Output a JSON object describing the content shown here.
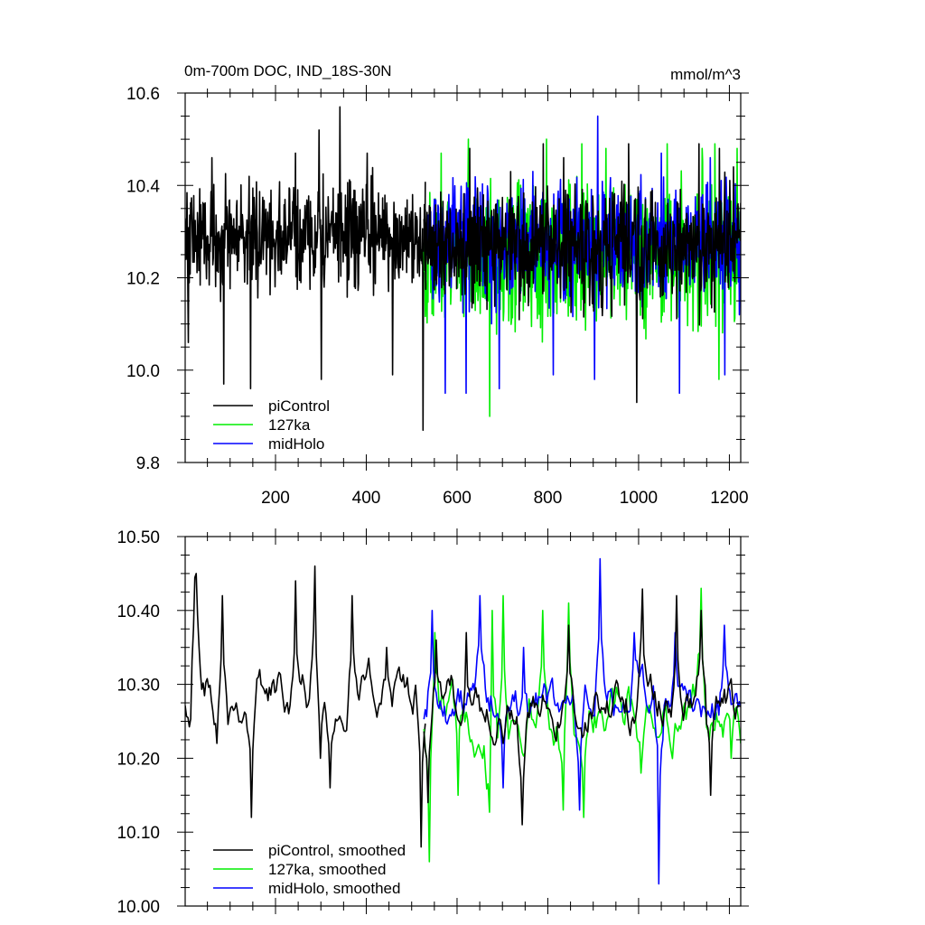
{
  "chart_data": [
    {
      "type": "line",
      "title": "0m-700m DOC, IND_18S-30N",
      "units": "mmol/m^3",
      "xlim": [
        1,
        1225
      ],
      "ylim": [
        9.8,
        10.6
      ],
      "xticks": [
        200,
        400,
        600,
        800,
        1000,
        1200
      ],
      "yticks": [
        9.8,
        10.0,
        10.2,
        10.4,
        10.6
      ],
      "ytick_labels": [
        "9.8",
        "10.0",
        "10.2",
        "10.4",
        "10.6"
      ],
      "grid": false,
      "legend_position": "bottom-left",
      "series": [
        {
          "name": "piControl",
          "color": "#000000",
          "x_start": 1,
          "x_end": 530,
          "points": 530,
          "mean": 10.29,
          "amp": 0.1,
          "extrema": [
            [
              8,
              10.06
            ],
            [
              60,
              10.46
            ],
            [
              86,
              9.97
            ],
            [
              145,
              9.96
            ],
            [
              244,
              10.47
            ],
            [
              296,
              10.52
            ],
            [
              301,
              9.98
            ],
            [
              342,
              10.57
            ],
            [
              402,
              10.47
            ],
            [
              458,
              9.99
            ],
            [
              525,
              9.87
            ]
          ]
        },
        {
          "name": "127ka",
          "color": "#00ee00",
          "x_start": 527,
          "x_end": 1225,
          "points": 699,
          "mean": 10.25,
          "amp": 0.13,
          "extrema": [
            [
              565,
              10.47
            ],
            [
              625,
              10.5
            ],
            [
              672,
              9.9
            ],
            [
              797,
              10.5
            ],
            [
              875,
              10.49
            ],
            [
              928,
              10.48
            ],
            [
              1063,
              10.49
            ],
            [
              1140,
              10.48
            ],
            [
              1168,
              10.49
            ],
            [
              1177,
              9.98
            ],
            [
              1217,
              10.48
            ]
          ]
        },
        {
          "name": "midHolo",
          "color": "#0000ff",
          "x_start": 533,
          "x_end": 1225,
          "points": 693,
          "mean": 10.28,
          "amp": 0.11,
          "extrema": [
            [
              574,
              9.95
            ],
            [
              620,
              9.95
            ],
            [
              693,
              9.96
            ],
            [
              812,
              9.99
            ],
            [
              910,
              10.55
            ],
            [
              903,
              9.98
            ],
            [
              1050,
              10.47
            ],
            [
              1090,
              9.95
            ],
            [
              1158,
              10.46
            ],
            [
              1190,
              9.99
            ],
            [
              1222,
              10.12
            ]
          ]
        },
        {
          "name": "piControl",
          "color": "#000000",
          "x_start": 527,
          "x_end": 1225,
          "points": 699,
          "mean": 10.27,
          "amp": 0.11,
          "overlay": true,
          "extrema": [
            [
              628,
              10.48
            ],
            [
              718,
              10.43
            ],
            [
              790,
              10.49
            ],
            [
              835,
              10.46
            ],
            [
              978,
              10.49
            ],
            [
              996,
              9.93
            ],
            [
              1133,
              10.49
            ],
            [
              1178,
              10.48
            ],
            [
              1209,
              10.44
            ]
          ]
        }
      ]
    },
    {
      "type": "line",
      "title": "",
      "xlim": [
        1,
        1225
      ],
      "ylim": [
        10.0,
        10.5
      ],
      "xticks": [
        200,
        400,
        600,
        800,
        1000,
        1200
      ],
      "yticks": [
        10.0,
        10.1,
        10.2,
        10.3,
        10.4,
        10.5
      ],
      "ytick_labels": [
        "10.00",
        "10.10",
        "10.20",
        "10.30",
        "10.40",
        "10.50"
      ],
      "grid": false,
      "legend_position": "bottom-left",
      "series": [
        {
          "name": "piControl, smoothed",
          "color": "#000000",
          "x_start": 1,
          "x_end": 530,
          "points": 175,
          "mean": 10.29,
          "amp": 0.07,
          "extrema": [
            [
              8,
              10.27
            ],
            [
              12,
              10.22
            ],
            [
              22,
              10.44
            ],
            [
              26,
              10.45
            ],
            [
              70,
              10.22
            ],
            [
              84,
              10.42
            ],
            [
              146,
              10.12
            ],
            [
              244,
              10.44
            ],
            [
              286,
              10.46
            ],
            [
              300,
              10.2
            ],
            [
              320,
              10.16
            ],
            [
              368,
              10.42
            ],
            [
              445,
              10.35
            ],
            [
              520,
              10.08
            ]
          ]
        },
        {
          "name": "127ka, smoothed",
          "color": "#00ee00",
          "x_start": 527,
          "x_end": 1225,
          "points": 233,
          "mean": 10.26,
          "amp": 0.08,
          "extrema": [
            [
              540,
              10.06
            ],
            [
              550,
              10.37
            ],
            [
              603,
              10.15
            ],
            [
              670,
              10.01
            ],
            [
              676,
              10.4
            ],
            [
              703,
              10.42
            ],
            [
              790,
              10.4
            ],
            [
              835,
              10.13
            ],
            [
              846,
              10.41
            ],
            [
              878,
              10.12
            ],
            [
              1005,
              10.18
            ],
            [
              1138,
              10.43
            ],
            [
              1204,
              10.2
            ],
            [
              1225,
              10.22
            ]
          ]
        },
        {
          "name": "midHolo, smoothed",
          "color": "#0000ff",
          "x_start": 527,
          "x_end": 1225,
          "points": 233,
          "mean": 10.27,
          "amp": 0.07,
          "extrema": [
            [
              545,
              10.4
            ],
            [
              572,
              10.27
            ],
            [
              650,
              10.42
            ],
            [
              700,
              10.16
            ],
            [
              748,
              10.35
            ],
            [
              870,
              10.13
            ],
            [
              914,
              10.47
            ],
            [
              990,
              10.37
            ],
            [
              1040,
              10.37
            ],
            [
              1045,
              10.03
            ],
            [
              1080,
              10.37
            ],
            [
              1190,
              10.38
            ],
            [
              1225,
              10.27
            ]
          ]
        },
        {
          "name": "piControl, smoothed",
          "color": "#000000",
          "x_start": 527,
          "x_end": 1225,
          "points": 233,
          "mean": 10.27,
          "amp": 0.07,
          "overlay": true,
          "extrema": [
            [
              535,
              10.14
            ],
            [
              555,
              10.36
            ],
            [
              620,
              10.37
            ],
            [
              700,
              10.22
            ],
            [
              745,
              10.11
            ],
            [
              845,
              10.38
            ],
            [
              1009,
              10.45
            ],
            [
              1018,
              10.31
            ],
            [
              1083,
              10.42
            ],
            [
              1137,
              10.4
            ],
            [
              1160,
              10.15
            ],
            [
              1225,
              10.27
            ]
          ]
        }
      ]
    }
  ]
}
